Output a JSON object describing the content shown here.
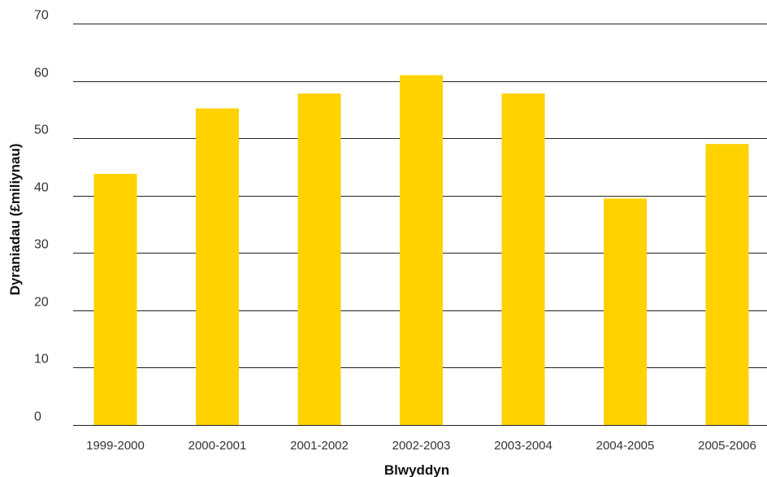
{
  "chart_data": {
    "type": "bar",
    "categories": [
      "1999-2000",
      "2000-2001",
      "2001-2002",
      "2002-2003",
      "2003-2004",
      "2004-2005",
      "2005-2006"
    ],
    "values": [
      43.8,
      55.2,
      57.8,
      61.0,
      57.8,
      39.5,
      49.0
    ],
    "xlabel": "Blwyddyn",
    "ylabel": "Dyraniadau (£miliynau)",
    "ylim": [
      0,
      70
    ],
    "yticks": [
      0,
      10,
      20,
      30,
      40,
      50,
      60,
      70
    ],
    "grid": true,
    "bar_color": "#FFD200",
    "grid_color": "#222222"
  }
}
